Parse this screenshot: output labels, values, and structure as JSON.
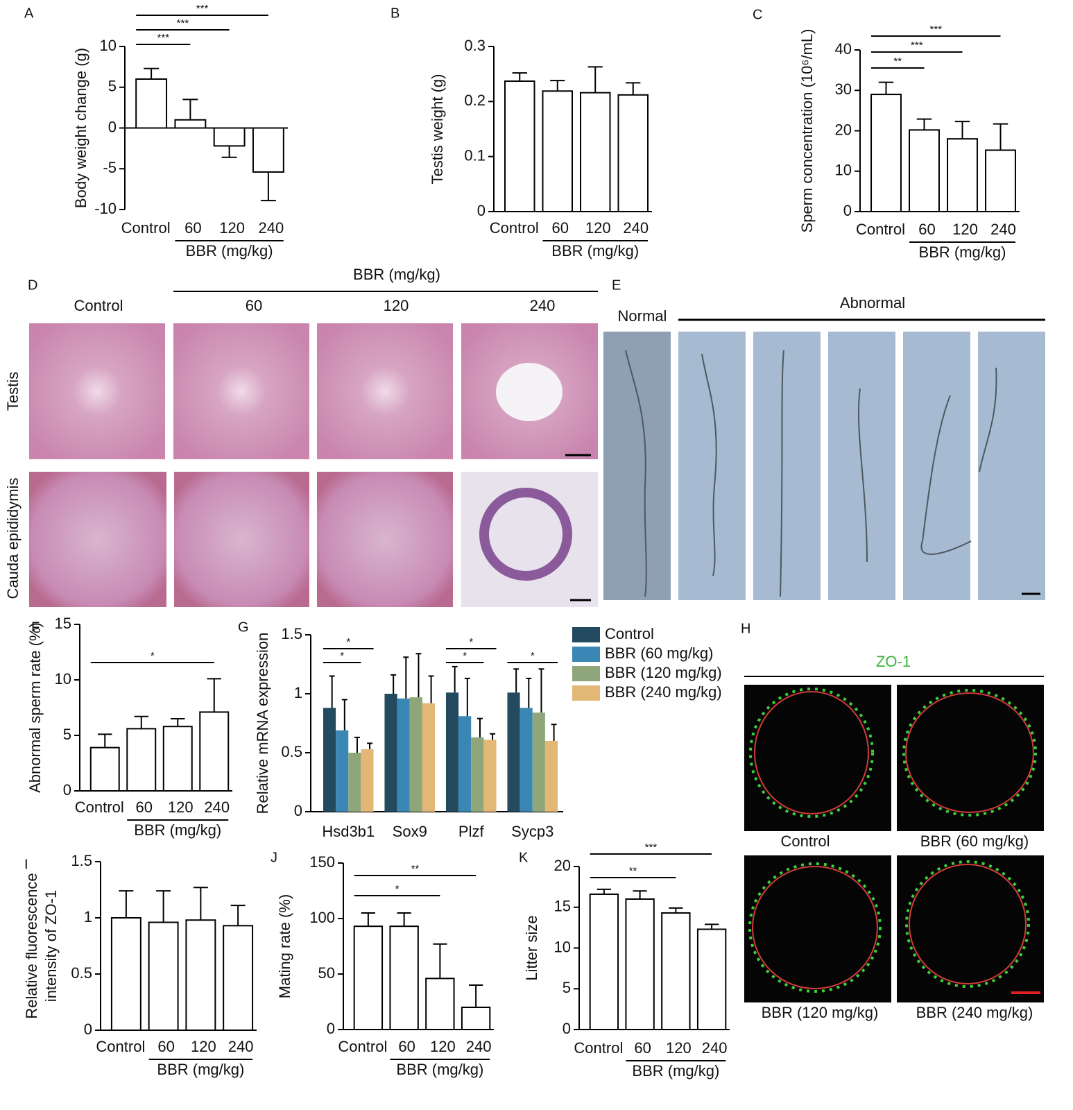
{
  "chart_data": [
    {
      "type": "bar",
      "panel": "A",
      "ylabel": "Body weight change (g)",
      "categories": [
        "Control",
        "60",
        "120",
        "240"
      ],
      "group_label": "BBR (mg/kg)",
      "values": [
        6.0,
        1.0,
        -2.2,
        -5.4
      ],
      "errors": [
        1.3,
        2.5,
        1.4,
        3.5
      ],
      "color": "#ffffff",
      "ylim": [
        -10,
        10
      ],
      "yticks": [
        -10,
        -5,
        0,
        5,
        10
      ],
      "significance": [
        {
          "from": "Control",
          "to": "60",
          "label": "***"
        },
        {
          "from": "Control",
          "to": "120",
          "label": "***"
        },
        {
          "from": "Control",
          "to": "240",
          "label": "***"
        }
      ]
    },
    {
      "type": "bar",
      "panel": "B",
      "ylabel": "Testis weight (g)",
      "categories": [
        "Control",
        "60",
        "120",
        "240"
      ],
      "group_label": "BBR (mg/kg)",
      "values": [
        0.237,
        0.219,
        0.216,
        0.212
      ],
      "errors": [
        0.015,
        0.019,
        0.047,
        0.022
      ],
      "color": "#ffffff",
      "ylim": [
        0,
        0.3
      ],
      "yticks": [
        0,
        0.1,
        0.2,
        0.3
      ],
      "significance": []
    },
    {
      "type": "bar",
      "panel": "C",
      "ylabel": "Sperm concentration (10⁶/mL)",
      "categories": [
        "Control",
        "60",
        "120",
        "240"
      ],
      "group_label": "BBR (mg/kg)",
      "values": [
        29,
        20.2,
        18,
        15.2
      ],
      "errors": [
        3,
        2.7,
        4.3,
        6.5
      ],
      "color": "#ffffff",
      "ylim": [
        0,
        40
      ],
      "yticks": [
        0,
        10,
        20,
        30,
        40
      ],
      "significance": [
        {
          "from": "Control",
          "to": "60",
          "label": "**"
        },
        {
          "from": "Control",
          "to": "120",
          "label": "***"
        },
        {
          "from": "Control",
          "to": "240",
          "label": "***"
        }
      ]
    },
    {
      "type": "bar",
      "panel": "F",
      "ylabel": "Abnormal sperm rate (%)",
      "categories": [
        "Control",
        "60",
        "120",
        "240"
      ],
      "group_label": "BBR (mg/kg)",
      "values": [
        3.9,
        5.6,
        5.8,
        7.1
      ],
      "errors": [
        1.2,
        1.1,
        0.7,
        3.0
      ],
      "color": "#ffffff",
      "ylim": [
        0,
        15
      ],
      "yticks": [
        0,
        5,
        10,
        15
      ],
      "significance": [
        {
          "from": "Control",
          "to": "240",
          "label": "*"
        }
      ]
    },
    {
      "type": "grouped_bar",
      "panel": "G",
      "ylabel": "Relative mRNA expression",
      "categories": [
        "Hsd3b1",
        "Sox9",
        "Plzf",
        "Sycp3"
      ],
      "series": [
        {
          "name": "Control",
          "color": "#234a5e",
          "values": [
            0.88,
            1.0,
            1.01,
            1.01
          ],
          "errors": [
            0.27,
            0.16,
            0.22,
            0.2
          ]
        },
        {
          "name": "BBR (60 mg/kg)",
          "color": "#3a87b5",
          "values": [
            0.69,
            0.96,
            0.81,
            0.88
          ],
          "errors": [
            0.26,
            0.35,
            0.32,
            0.25
          ]
        },
        {
          "name": "BBR (120 mg/kg)",
          "color": "#8fa67a",
          "values": [
            0.5,
            0.97,
            0.63,
            0.84
          ],
          "errors": [
            0.13,
            0.37,
            0.16,
            0.37
          ]
        },
        {
          "name": "BBR (240 mg/kg)",
          "color": "#e3b877",
          "values": [
            0.53,
            0.92,
            0.61,
            0.6
          ],
          "errors": [
            0.05,
            0.23,
            0.05,
            0.14
          ]
        }
      ],
      "ylim": [
        0,
        1.5
      ],
      "yticks": [
        0,
        0.5,
        1,
        1.5
      ],
      "significance": [
        {
          "category": "Hsd3b1",
          "from": "Control",
          "to": "BBR (120 mg/kg)",
          "label": "*"
        },
        {
          "category": "Hsd3b1",
          "from": "Control",
          "to": "BBR (240 mg/kg)",
          "label": "*"
        },
        {
          "category": "Plzf",
          "from": "Control",
          "to": "BBR (120 mg/kg)",
          "label": "*"
        },
        {
          "category": "Plzf",
          "from": "Control",
          "to": "BBR (240 mg/kg)",
          "label": "*"
        },
        {
          "category": "Sycp3",
          "from": "Control",
          "to": "BBR (240 mg/kg)",
          "label": "*"
        }
      ]
    },
    {
      "type": "bar",
      "panel": "I",
      "ylabel": [
        "Relative fluorescence",
        "intensity of ZO-1"
      ],
      "categories": [
        "Control",
        "60",
        "120",
        "240"
      ],
      "group_label": "BBR (mg/kg)",
      "values": [
        1.0,
        0.96,
        0.98,
        0.93
      ],
      "errors": [
        0.24,
        0.28,
        0.29,
        0.18
      ],
      "color": "#ffffff",
      "ylim": [
        0,
        1.5
      ],
      "yticks": [
        0,
        0.5,
        1,
        1.5
      ],
      "significance": []
    },
    {
      "type": "bar",
      "panel": "J",
      "ylabel": "Mating rate (%)",
      "categories": [
        "Control",
        "60",
        "120",
        "240"
      ],
      "group_label": "BBR (mg/kg)",
      "values": [
        93,
        93,
        46,
        20
      ],
      "errors": [
        12,
        12,
        31,
        20
      ],
      "color": "#ffffff",
      "ylim": [
        0,
        150
      ],
      "yticks": [
        0,
        50,
        100,
        150
      ],
      "significance": [
        {
          "from": "Control",
          "to": "120",
          "label": "*"
        },
        {
          "from": "Control",
          "to": "240",
          "label": "**"
        }
      ]
    },
    {
      "type": "bar",
      "panel": "K",
      "ylabel": "Litter size",
      "categories": [
        "Control",
        "60",
        "120",
        "240"
      ],
      "group_label": "BBR (mg/kg)",
      "values": [
        16.6,
        16.0,
        14.3,
        12.3
      ],
      "errors": [
        0.6,
        1.0,
        0.6,
        0.6
      ],
      "color": "#ffffff",
      "ylim": [
        0,
        20
      ],
      "yticks": [
        0,
        5,
        10,
        15,
        20
      ],
      "significance": [
        {
          "from": "Control",
          "to": "120",
          "label": "**"
        },
        {
          "from": "Control",
          "to": "240",
          "label": "***"
        }
      ]
    }
  ],
  "image_panels": {
    "D": {
      "label": "D",
      "header": "BBR (mg/kg)",
      "columns": [
        "Control",
        "60",
        "120",
        "240"
      ],
      "rows": [
        "Testis",
        "Cauda epididymis"
      ]
    },
    "E": {
      "label": "E",
      "normal": "Normal",
      "abnormal": "Abnormal"
    },
    "H": {
      "label": "H",
      "stain": "ZO-1",
      "captions": [
        "Control",
        "BBR (60 mg/kg)",
        "BBR (120 mg/kg)",
        "BBR (240 mg/kg)"
      ]
    }
  }
}
